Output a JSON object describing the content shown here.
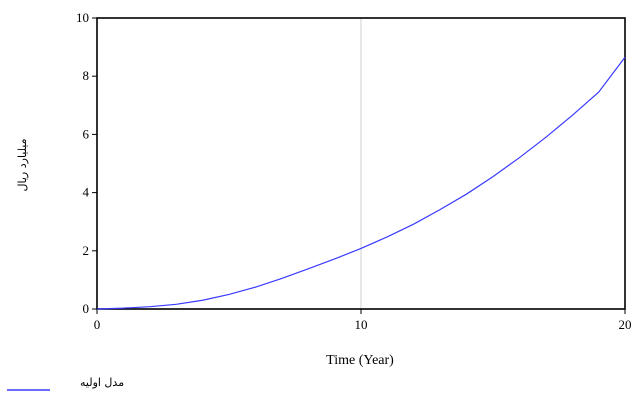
{
  "chart_data": {
    "type": "line",
    "title": "",
    "xlabel": "Time (Year)",
    "ylabel": "میلیارد ریال",
    "xlim": [
      0,
      20
    ],
    "ylim": [
      0,
      10
    ],
    "x_ticks": [
      0,
      10,
      20
    ],
    "y_ticks": [
      0,
      2,
      4,
      6,
      8,
      10
    ],
    "grid": true,
    "legend_position": "bottom-left",
    "series": [
      {
        "name": "مدل اولیه",
        "color": "#3a3aff",
        "x": [
          0,
          1,
          2,
          3,
          4,
          5,
          6,
          7,
          8,
          9,
          10,
          11,
          12,
          13,
          14,
          15,
          16,
          17,
          18,
          19,
          20
        ],
        "y": [
          0,
          0.03,
          0.08,
          0.16,
          0.3,
          0.5,
          0.75,
          1.05,
          1.38,
          1.72,
          2.08,
          2.48,
          2.92,
          3.42,
          3.95,
          4.55,
          5.2,
          5.9,
          6.65,
          7.45,
          8.65
        ]
      }
    ]
  }
}
